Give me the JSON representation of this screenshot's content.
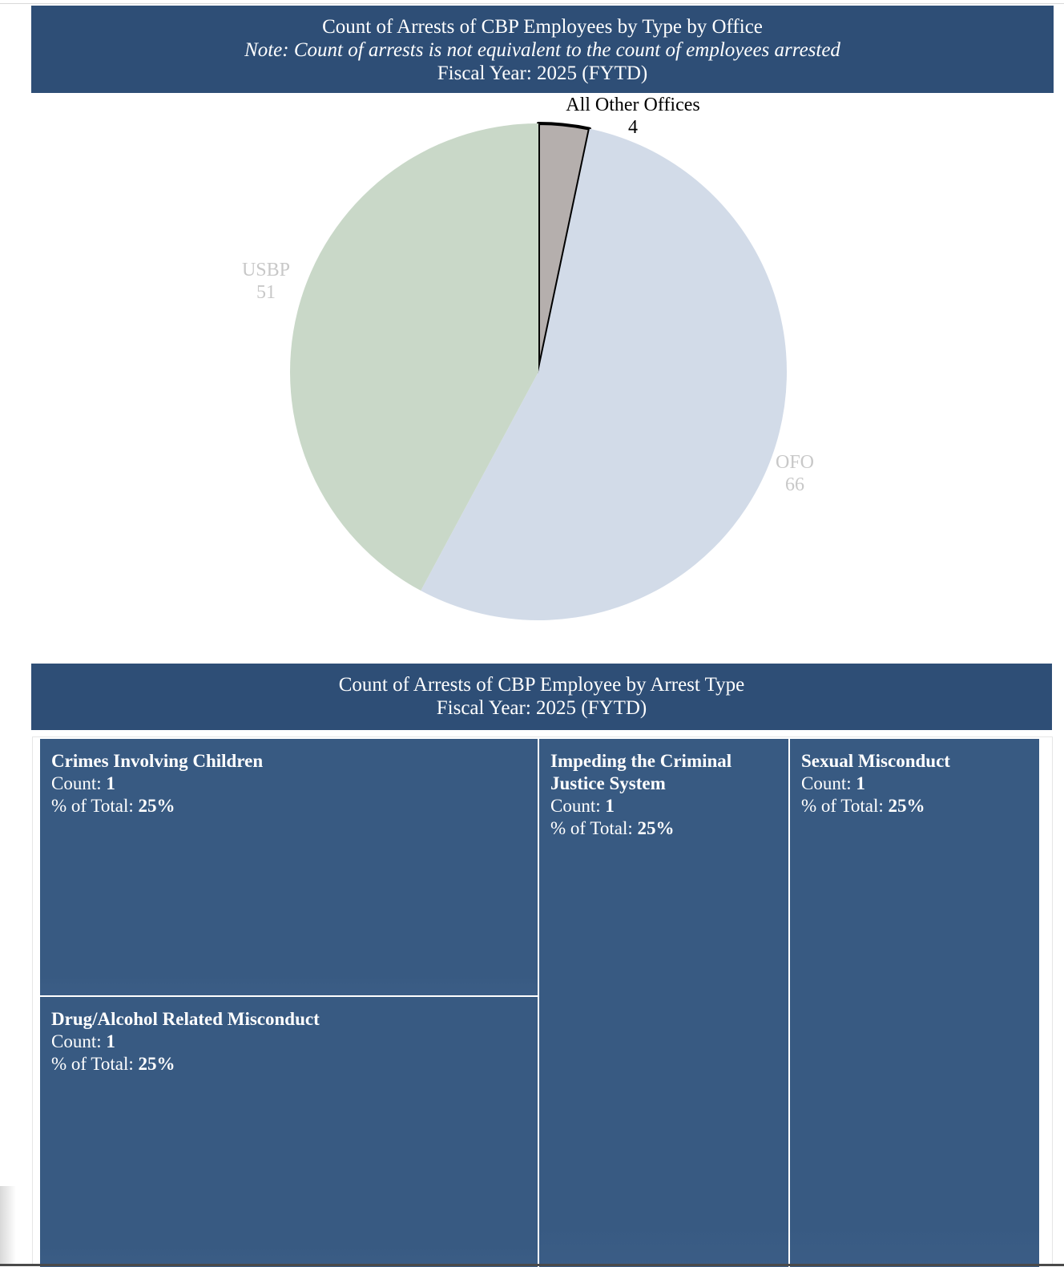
{
  "pie_header": {
    "title": "Count of  Arrests of CBP Employees by Type by Office",
    "note": "Note: Count of arrests is not equivalent to the count of employees arrested",
    "fiscal_year": "Fiscal Year: 2025 (FYTD)"
  },
  "treemap_header": {
    "title": "Count of Arrests of CBP Employee by Arrest Type",
    "fiscal_year": "Fiscal Year: 2025 (FYTD)"
  },
  "chart_data": [
    {
      "type": "pie",
      "title": "Count of  Arrests of CBP Employees by Type by Office",
      "subtitle": "Fiscal Year: 2025 (FYTD)",
      "slices": [
        {
          "label": "All Other Offices",
          "value": 4,
          "color": "#b5afad",
          "highlighted": true
        },
        {
          "label": "OFO",
          "value": 66,
          "color": "#d2dbe8"
        },
        {
          "label": "USBP",
          "value": 51,
          "color": "#c9d8c8"
        }
      ]
    },
    {
      "type": "treemap",
      "title": "Count of Arrests of CBP Employee by Arrest Type",
      "subtitle": "Fiscal Year: 2025 (FYTD)",
      "count_prefix": "Count: ",
      "pct_prefix": "% of Total: ",
      "items": [
        {
          "name": "Crimes Involving Children",
          "count": "1",
          "pct": "25%"
        },
        {
          "name": "Drug/Alcohol Related Misconduct",
          "count": "1",
          "pct": "25%"
        },
        {
          "name": "Impeding the Criminal Justice System",
          "count": "1",
          "pct": "25%"
        },
        {
          "name": "Sexual Misconduct",
          "count": "1",
          "pct": "25%"
        }
      ],
      "tile_color": "#385a82"
    }
  ],
  "colors": {
    "banner": "#2e4e76",
    "pie_label_light": "#c8c8c8",
    "pie_label_dark": "#000000"
  }
}
